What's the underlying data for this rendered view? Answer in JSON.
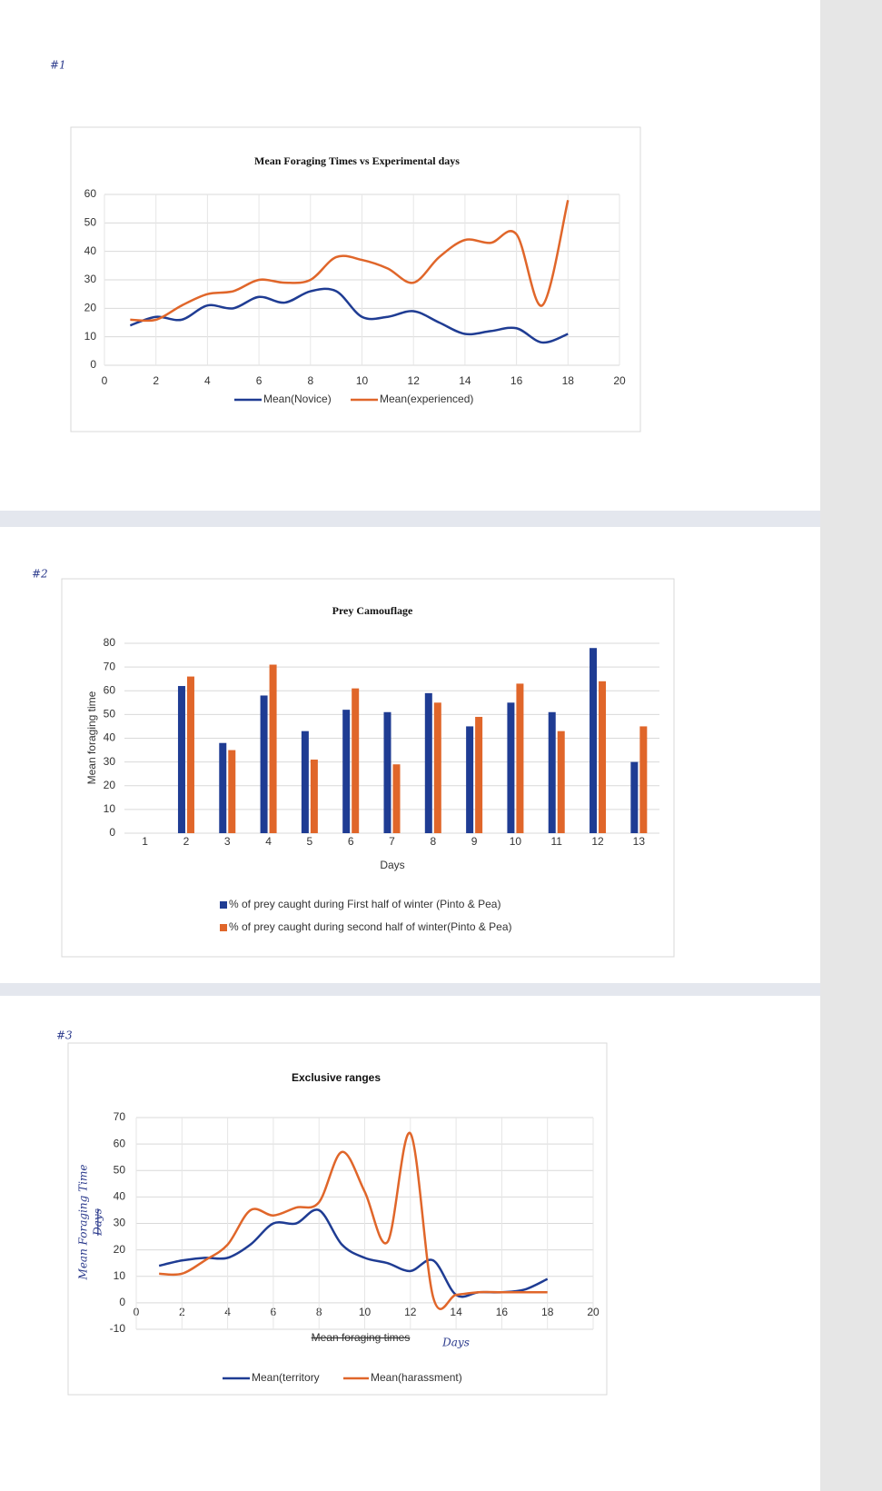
{
  "page_labels": [
    "#1",
    "#2",
    "#3"
  ],
  "chart_data": [
    {
      "type": "line",
      "title": "Mean Foraging Times vs Experimental days",
      "x": [
        1,
        2,
        3,
        4,
        5,
        6,
        7,
        8,
        9,
        10,
        11,
        12,
        13,
        14,
        15,
        16,
        17,
        18
      ],
      "series": [
        {
          "name": "Mean(Novice)",
          "color": "#1f3c93",
          "values": [
            14,
            17,
            16,
            21,
            20,
            24,
            22,
            26,
            26,
            17,
            17,
            19,
            15,
            11,
            12,
            13,
            8,
            11
          ]
        },
        {
          "name": "Mean(experienced)",
          "color": "#e0662a",
          "values": [
            16,
            16,
            21,
            25,
            26,
            30,
            29,
            30,
            38,
            37,
            34,
            29,
            38,
            44,
            43,
            46,
            21,
            58
          ]
        }
      ],
      "xlim": [
        0,
        20
      ],
      "xticks": [
        0,
        2,
        4,
        6,
        8,
        10,
        12,
        14,
        16,
        18,
        20
      ],
      "ylim": [
        0,
        60
      ],
      "yticks": [
        0,
        10,
        20,
        30,
        40,
        50,
        60
      ],
      "grid": "both"
    },
    {
      "type": "bar",
      "title": "Prey Camouflage",
      "x_label": "Days",
      "y_label": "Mean foraging time",
      "categories": [
        "1",
        "2",
        "3",
        "4",
        "5",
        "6",
        "7",
        "8",
        "9",
        "10",
        "11",
        "12",
        "13"
      ],
      "series": [
        {
          "name": "% of prey caught during First half of winter (Pinto & Pea)",
          "color": "#1f3c93",
          "values": [
            null,
            62,
            38,
            58,
            43,
            52,
            51,
            59,
            45,
            55,
            51,
            78,
            30
          ]
        },
        {
          "name": "% of prey caught during second half of winter(Pinto & Pea)",
          "color": "#e0662a",
          "values": [
            null,
            66,
            35,
            71,
            31,
            61,
            29,
            55,
            49,
            63,
            43,
            64,
            45
          ]
        }
      ],
      "ylim": [
        0,
        80
      ],
      "yticks": [
        0,
        10,
        20,
        30,
        40,
        50,
        60,
        70,
        80
      ],
      "grid": "y"
    },
    {
      "type": "line",
      "title": "Exclusive ranges",
      "x_label": "Mean foraging times",
      "x_label_note": "Days",
      "y_label": "Mean Foraging Time",
      "y_label_struck": "Days",
      "x": [
        1,
        2,
        3,
        4,
        5,
        6,
        7,
        8,
        9,
        10,
        11,
        12,
        13,
        14,
        15,
        16,
        17,
        18
      ],
      "series": [
        {
          "name": "Mean(territory",
          "color": "#1f3c93",
          "values": [
            14,
            16,
            17,
            17,
            22,
            30,
            30,
            35,
            22,
            17,
            15,
            12,
            16,
            3,
            4,
            4,
            5,
            9
          ]
        },
        {
          "name": "Mean(harassment)",
          "color": "#e0662a",
          "values": [
            11,
            11,
            16,
            22,
            35,
            33,
            36,
            38,
            57,
            42,
            23,
            64,
            2,
            3,
            4,
            4,
            4,
            4
          ]
        }
      ],
      "xlim": [
        0,
        20
      ],
      "xticks": [
        0,
        2,
        4,
        6,
        8,
        10,
        12,
        14,
        16,
        18,
        20
      ],
      "ylim": [
        -10,
        70
      ],
      "yticks": [
        -10,
        0,
        10,
        20,
        30,
        40,
        50,
        60,
        70
      ],
      "grid": "both"
    }
  ]
}
